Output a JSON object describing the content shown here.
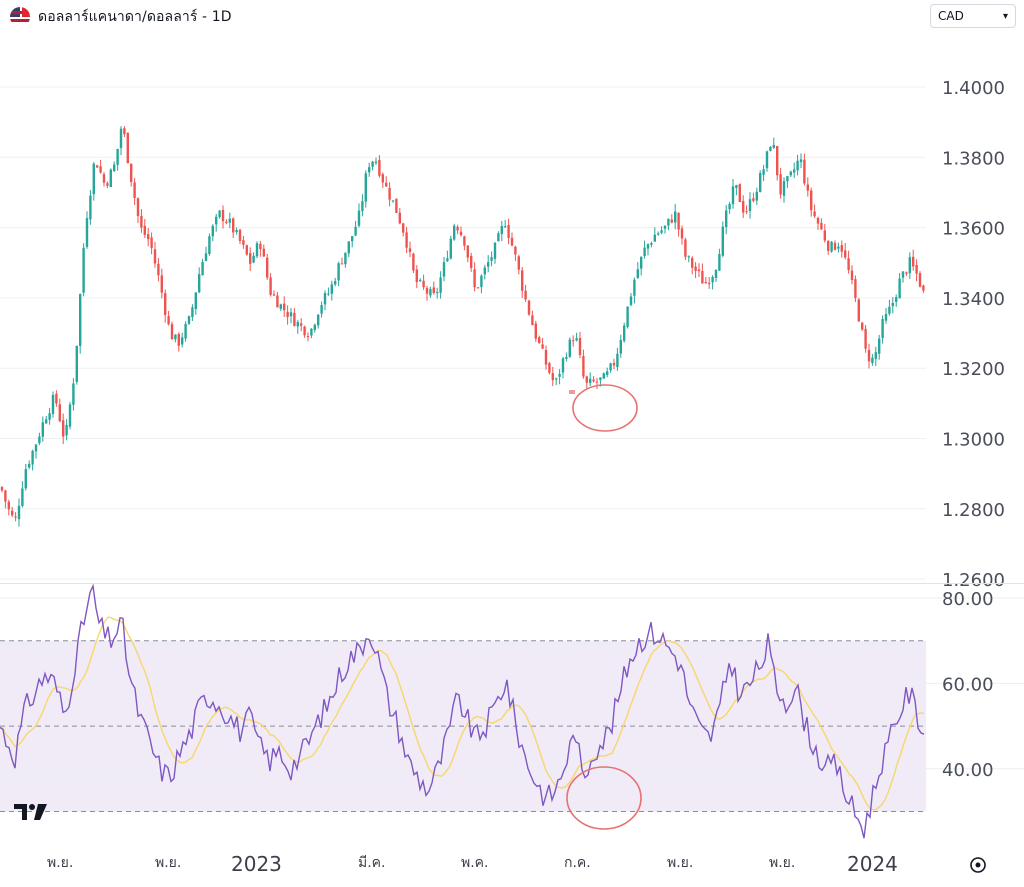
{
  "header": {
    "title": "ดอลลาร์แคนาดา/ดอลลาร์ - 1D",
    "currency_select": {
      "value": "CAD",
      "caret": "▾"
    },
    "icons": {
      "flag": "usd-cad-flag-icon",
      "logo": "tradingview-logo-icon",
      "settings": "target-settings-icon"
    }
  },
  "colors": {
    "up": "#26a69a",
    "down": "#ef5350",
    "rsi_line": "#7e57c2",
    "rsi_ma": "#f7d76b",
    "rsi_band": "#ede7f6",
    "annotation": "#e57373"
  },
  "chart_data": [
    {
      "type": "candlestick",
      "title": "ดอลลาร์แคนาดา/ดอลลาร์ - 1D",
      "ylim": [
        1.26,
        1.41
      ],
      "ytick_labels": [
        "1.4000",
        "1.3800",
        "1.3600",
        "1.3400",
        "1.3200",
        "1.3000",
        "1.2800",
        "1.2600"
      ],
      "grid": true,
      "series": [
        {
          "name": "",
          "close_path": [
            [
              0,
              1.287
            ],
            [
              8,
              1.28
            ],
            [
              15,
              1.276
            ],
            [
              25,
              1.291
            ],
            [
              35,
              1.298
            ],
            [
              45,
              1.306
            ],
            [
              55,
              1.312
            ],
            [
              65,
              1.299
            ],
            [
              75,
              1.32
            ],
            [
              85,
              1.36
            ],
            [
              95,
              1.38
            ],
            [
              105,
              1.372
            ],
            [
              115,
              1.378
            ],
            [
              122,
              1.39
            ],
            [
              130,
              1.376
            ],
            [
              140,
              1.36
            ],
            [
              150,
              1.356
            ],
            [
              160,
              1.344
            ],
            [
              170,
              1.33
            ],
            [
              178,
              1.327
            ],
            [
              190,
              1.334
            ],
            [
              200,
              1.348
            ],
            [
              210,
              1.358
            ],
            [
              220,
              1.364
            ],
            [
              230,
              1.361
            ],
            [
              240,
              1.356
            ],
            [
              250,
              1.35
            ],
            [
              260,
              1.356
            ],
            [
              270,
              1.342
            ],
            [
              280,
              1.338
            ],
            [
              290,
              1.335
            ],
            [
              300,
              1.332
            ],
            [
              310,
              1.33
            ],
            [
              320,
              1.338
            ],
            [
              330,
              1.342
            ],
            [
              340,
              1.35
            ],
            [
              350,
              1.356
            ],
            [
              360,
              1.364
            ],
            [
              368,
              1.378
            ],
            [
              375,
              1.38
            ],
            [
              385,
              1.372
            ],
            [
              395,
              1.366
            ],
            [
              405,
              1.358
            ],
            [
              415,
              1.345
            ],
            [
              425,
              1.342
            ],
            [
              435,
              1.34
            ],
            [
              445,
              1.35
            ],
            [
              455,
              1.362
            ],
            [
              465,
              1.356
            ],
            [
              475,
              1.342
            ],
            [
              485,
              1.348
            ],
            [
              495,
              1.354
            ],
            [
              505,
              1.362
            ],
            [
              515,
              1.352
            ],
            [
              525,
              1.34
            ],
            [
              535,
              1.33
            ],
            [
              545,
              1.322
            ],
            [
              555,
              1.315
            ],
            [
              565,
              1.324
            ],
            [
              575,
              1.33
            ],
            [
              585,
              1.315
            ],
            [
              595,
              1.316
            ],
            [
              605,
              1.317
            ],
            [
              615,
              1.322
            ],
            [
              625,
              1.334
            ],
            [
              635,
              1.346
            ],
            [
              645,
              1.354
            ],
            [
              655,
              1.358
            ],
            [
              665,
              1.36
            ],
            [
              675,
              1.364
            ],
            [
              685,
              1.352
            ],
            [
              695,
              1.348
            ],
            [
              705,
              1.344
            ],
            [
              715,
              1.348
            ],
            [
              725,
              1.362
            ],
            [
              735,
              1.372
            ],
            [
              745,
              1.364
            ],
            [
              755,
              1.37
            ],
            [
              765,
              1.378
            ],
            [
              772,
              1.386
            ],
            [
              780,
              1.37
            ],
            [
              790,
              1.374
            ],
            [
              800,
              1.38
            ],
            [
              810,
              1.366
            ],
            [
              820,
              1.36
            ],
            [
              830,
              1.354
            ],
            [
              840,
              1.356
            ],
            [
              850,
              1.346
            ],
            [
              858,
              1.336
            ],
            [
              866,
              1.324
            ],
            [
              874,
              1.322
            ],
            [
              882,
              1.332
            ],
            [
              892,
              1.338
            ],
            [
              900,
              1.345
            ],
            [
              910,
              1.35
            ],
            [
              918,
              1.346
            ],
            [
              925,
              1.34
            ]
          ]
        }
      ],
      "annotation": {
        "type": "ellipse",
        "at_index": 59,
        "at_value": 1.312
      }
    },
    {
      "type": "line",
      "title": "",
      "ylim": [
        23,
        83
      ],
      "ytick_labels": [
        "80.00",
        "60.00",
        "40.00"
      ],
      "bands": [
        30,
        50,
        70
      ],
      "xtick_labels": [
        "พ.ย.",
        "พ.ย.",
        "2023",
        "มี.ค.",
        "พ.ค.",
        "ก.ค.",
        "พ.ย.",
        "พ.ย.",
        "2024"
      ],
      "series": [
        {
          "name": "",
          "values_path": [
            [
              0,
              50
            ],
            [
              8,
              46
            ],
            [
              15,
              43
            ],
            [
              25,
              54
            ],
            [
              35,
              58
            ],
            [
              45,
              62
            ],
            [
              55,
              60
            ],
            [
              65,
              52
            ],
            [
              75,
              65
            ],
            [
              85,
              76
            ],
            [
              92,
              82
            ],
            [
              100,
              73
            ],
            [
              110,
              70
            ],
            [
              122,
              74
            ],
            [
              130,
              61
            ],
            [
              140,
              52
            ],
            [
              150,
              46
            ],
            [
              160,
              40
            ],
            [
              170,
              38
            ],
            [
              180,
              44
            ],
            [
              190,
              48
            ],
            [
              200,
              55
            ],
            [
              210,
              57
            ],
            [
              220,
              55
            ],
            [
              230,
              52
            ],
            [
              240,
              49
            ],
            [
              250,
              52
            ],
            [
              260,
              45
            ],
            [
              270,
              42
            ],
            [
              280,
              44
            ],
            [
              290,
              40
            ],
            [
              300,
              43
            ],
            [
              310,
              47
            ],
            [
              320,
              52
            ],
            [
              330,
              56
            ],
            [
              340,
              62
            ],
            [
              350,
              66
            ],
            [
              360,
              68
            ],
            [
              370,
              73
            ],
            [
              378,
              66
            ],
            [
              388,
              56
            ],
            [
              398,
              50
            ],
            [
              408,
              42
            ],
            [
              418,
              38
            ],
            [
              428,
              35
            ],
            [
              438,
              40
            ],
            [
              448,
              48
            ],
            [
              458,
              57
            ],
            [
              466,
              52
            ],
            [
              476,
              47
            ],
            [
              486,
              50
            ],
            [
              496,
              55
            ],
            [
              506,
              61
            ],
            [
              516,
              50
            ],
            [
              526,
              42
            ],
            [
              536,
              37
            ],
            [
              546,
              33
            ],
            [
              556,
              35
            ],
            [
              566,
              42
            ],
            [
              576,
              49
            ],
            [
              583,
              36
            ],
            [
              592,
              44
            ],
            [
              600,
              46
            ],
            [
              610,
              49
            ],
            [
              620,
              58
            ],
            [
              630,
              66
            ],
            [
              640,
              70
            ],
            [
              650,
              72
            ],
            [
              660,
              71
            ],
            [
              670,
              68
            ],
            [
              680,
              65
            ],
            [
              690,
              55
            ],
            [
              700,
              49
            ],
            [
              710,
              47
            ],
            [
              720,
              54
            ],
            [
              730,
              66
            ],
            [
              740,
              57
            ],
            [
              750,
              60
            ],
            [
              760,
              64
            ],
            [
              768,
              69
            ],
            [
              776,
              59
            ],
            [
              786,
              56
            ],
            [
              796,
              59
            ],
            [
              806,
              50
            ],
            [
              816,
              44
            ],
            [
              826,
              40
            ],
            [
              836,
              41
            ],
            [
              846,
              34
            ],
            [
              856,
              29
            ],
            [
              864,
              26
            ],
            [
              872,
              33
            ],
            [
              882,
              42
            ],
            [
              892,
              48
            ],
            [
              902,
              55
            ],
            [
              910,
              58
            ],
            [
              918,
              52
            ],
            [
              926,
              48
            ]
          ]
        }
      ]
    }
  ]
}
